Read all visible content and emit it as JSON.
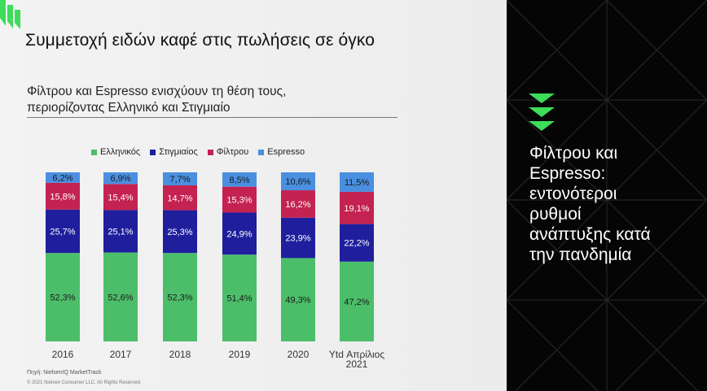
{
  "title": "Συμμετοχή ειδών καφέ στις πωλήσεις σε όγκο",
  "subtitle_line1": "Φίλτρου και Espresso ενισχύουν τη θέση τους,",
  "subtitle_line2": "περιορίζοντας Ελληνικό και Στιγμιαίο",
  "source": "Πηγή: NielsenIQ MarketTrack",
  "copyright": "© 2021 Nielsen Consumer LLC. All Rights Reserved.",
  "panel": {
    "line1": "Φίλτρου και",
    "line2": "Espresso:",
    "line3": "εντονότεροι",
    "line4": "ρυθμοί",
    "line5": "ανάπτυξης κατά",
    "line6": "την πανδημία"
  },
  "colors": {
    "green": "#4cbe6a",
    "navy": "#1f1f9e",
    "crimson": "#c42250",
    "blue": "#4a8fe0",
    "accent": "#3ddc5a"
  },
  "chart_data": {
    "type": "bar",
    "stacked": true,
    "categories": [
      "2016",
      "2017",
      "2018",
      "2019",
      "2020",
      "Ytd Απρίλιος 2021"
    ],
    "series": [
      {
        "name": "Ελληνικός",
        "color": "#4cbe6a",
        "values": [
          52.3,
          52.6,
          52.3,
          51.4,
          49.3,
          47.2
        ],
        "labels": [
          "52,3%",
          "52,6%",
          "52,3%",
          "51,4%",
          "49,3%",
          "47,2%"
        ]
      },
      {
        "name": "Στιγμιαίος",
        "color": "#1f1f9e",
        "values": [
          25.7,
          25.1,
          25.3,
          24.9,
          23.9,
          22.2
        ],
        "labels": [
          "25,7%",
          "25,1%",
          "25,3%",
          "24,9%",
          "23,9%",
          "22,2%"
        ]
      },
      {
        "name": "Φίλτρου",
        "color": "#c42250",
        "values": [
          15.8,
          15.4,
          14.7,
          15.3,
          16.2,
          19.1
        ],
        "labels": [
          "15,8%",
          "15,4%",
          "14,7%",
          "15,3%",
          "16,2%",
          "19,1%"
        ]
      },
      {
        "name": "Espresso",
        "color": "#4a8fe0",
        "values": [
          6.2,
          6.9,
          7.7,
          8.5,
          10.6,
          11.5
        ],
        "labels": [
          "6,2%",
          "6,9%",
          "7,7%",
          "8,5%",
          "10,6%",
          "11,5%"
        ]
      }
    ],
    "ylim": [
      0,
      100
    ],
    "legend_position": "top",
    "grid": false
  }
}
